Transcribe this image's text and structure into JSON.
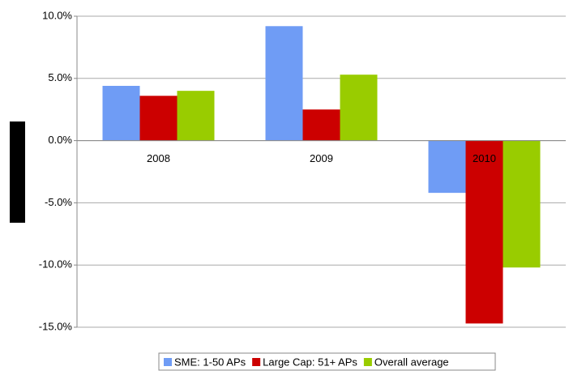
{
  "chart_data": {
    "type": "bar",
    "categories": [
      "2008",
      "2009",
      "2010"
    ],
    "series": [
      {
        "name": "SME: 1-50 APs",
        "color": "#6f9cf5",
        "values": [
          4.4,
          9.2,
          -4.2
        ]
      },
      {
        "name": "Large Cap: 51+ APs",
        "color": "#cc0000",
        "values": [
          3.6,
          2.5,
          -14.7
        ]
      },
      {
        "name": "Overall average",
        "color": "#99cc00",
        "values": [
          4.0,
          5.3,
          -10.2
        ]
      }
    ],
    "ylim": [
      -15,
      10
    ],
    "yticks": [
      {
        "value": -15,
        "label": "-15.0%"
      },
      {
        "value": -10,
        "label": "-10.0%"
      },
      {
        "value": -5,
        "label": "-5.0%"
      },
      {
        "value": 0,
        "label": "0.0%"
      },
      {
        "value": 5,
        "label": "5.0%"
      },
      {
        "value": 10,
        "label": "10.0%"
      }
    ],
    "grid": true
  }
}
